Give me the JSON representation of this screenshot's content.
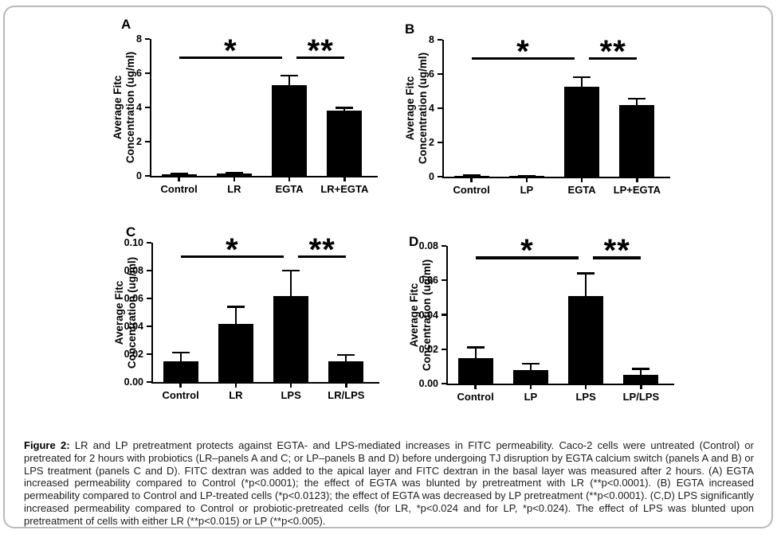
{
  "figure": {
    "background": "#ffffff",
    "frame_border_color": "#b9b9b9",
    "bar_color": "#000000",
    "caption_label": "Figure 2:",
    "caption_text": " LR and LP pretreatment protects against EGTA- and LPS-mediated increases in FITC permeability. Caco-2 cells were untreated (Control) or pretreated for 2 hours with probiotics (LR–panels A and C; or LP–panels B and D) before undergoing TJ disruption by EGTA calcium switch (panels A and B) or LPS treatment (panels C and D). FITC dextran was added to the apical layer and FITC dextran in the basal layer was measured after 2 hours. (A) EGTA increased permeability compared to Control (*p<0.0001); the effect of EGTA was blunted by pretreatment with LR (**p<0.0001). (B) EGTA increased permeability compared to Control and LP-treated cells (*p<0.0123); the effect of EGTA was decreased by LP pretreatment (**p<0.0001). (C,D) LPS significantly increased permeability compared to Control or probiotic-pretreated cells (for LR, *p<0.024 and for LP, *p<0.024). The effect of LPS was blunted upon pretreatment of cells with either LR (**p<0.015) or LP (**p<0.005)."
  },
  "chart_data": [
    {
      "type": "bar",
      "panel": "A",
      "ylabel": [
        "Average Fitc",
        "Concentration (ug/ml)"
      ],
      "categories": [
        "Control",
        "LR",
        "EGTA",
        "LR+EGTA"
      ],
      "values": [
        0.08,
        0.12,
        5.3,
        3.8
      ],
      "errors": [
        0.05,
        0.05,
        0.55,
        0.18
      ],
      "ylim": [
        0,
        8
      ],
      "ytick_values": [
        0,
        2,
        4,
        6,
        8
      ],
      "ytick_labels": [
        "0",
        "2",
        "4",
        "6",
        "8"
      ],
      "grid": false,
      "legend": false,
      "significance": [
        {
          "from": 0,
          "to": 2,
          "label": "*",
          "y": 7.0
        },
        {
          "from": 2,
          "to": 3,
          "label": "**",
          "y": 7.0
        }
      ]
    },
    {
      "type": "bar",
      "panel": "B",
      "ylabel": [
        "Average Fitc",
        "Concentration (ug/ml)"
      ],
      "categories": [
        "Control",
        "LP",
        "EGTA",
        "LP+EGTA"
      ],
      "values": [
        0.06,
        0.03,
        5.25,
        4.2
      ],
      "errors": [
        0.04,
        0.02,
        0.55,
        0.35
      ],
      "ylim": [
        0,
        8
      ],
      "ytick_values": [
        0,
        2,
        4,
        6,
        8
      ],
      "ytick_labels": [
        "0",
        "2",
        "4",
        "6",
        "8"
      ],
      "grid": false,
      "legend": false,
      "significance": [
        {
          "from": 0,
          "to": 2,
          "label": "*",
          "y": 7.0
        },
        {
          "from": 2,
          "to": 3,
          "label": "**",
          "y": 7.0
        }
      ]
    },
    {
      "type": "bar",
      "panel": "C",
      "ylabel": [
        "Average Fitc",
        "Concentration (ug/ml)"
      ],
      "categories": [
        "Control",
        "LR",
        "LPS",
        "LR/LPS"
      ],
      "values": [
        0.015,
        0.042,
        0.062,
        0.015
      ],
      "errors": [
        0.006,
        0.012,
        0.018,
        0.0045
      ],
      "ylim": [
        0,
        0.1
      ],
      "ytick_values": [
        0,
        0.02,
        0.04,
        0.06,
        0.08,
        0.1
      ],
      "ytick_labels": [
        "0.00",
        "0.02",
        "0.04",
        "0.06",
        "0.08",
        "0.10"
      ],
      "grid": false,
      "legend": false,
      "significance": [
        {
          "from": 0,
          "to": 2,
          "label": "*",
          "y": 0.091
        },
        {
          "from": 2,
          "to": 3,
          "label": "**",
          "y": 0.091
        }
      ]
    },
    {
      "type": "bar",
      "panel": "D",
      "ylabel": [
        "Average Fitc",
        "Concentration (ug/ml)"
      ],
      "categories": [
        "Control",
        "LP",
        "LPS",
        "LP/LPS"
      ],
      "values": [
        0.015,
        0.008,
        0.051,
        0.005
      ],
      "errors": [
        0.006,
        0.0035,
        0.013,
        0.0035
      ],
      "ylim": [
        0,
        0.08
      ],
      "ytick_values": [
        0,
        0.02,
        0.04,
        0.06,
        0.08
      ],
      "ytick_labels": [
        "0.00",
        "0.02",
        "0.04",
        "0.06",
        "0.08"
      ],
      "grid": false,
      "legend": false,
      "significance": [
        {
          "from": 0,
          "to": 2,
          "label": "*",
          "y": 0.074
        },
        {
          "from": 2,
          "to": 3,
          "label": "**",
          "y": 0.074
        }
      ]
    }
  ]
}
